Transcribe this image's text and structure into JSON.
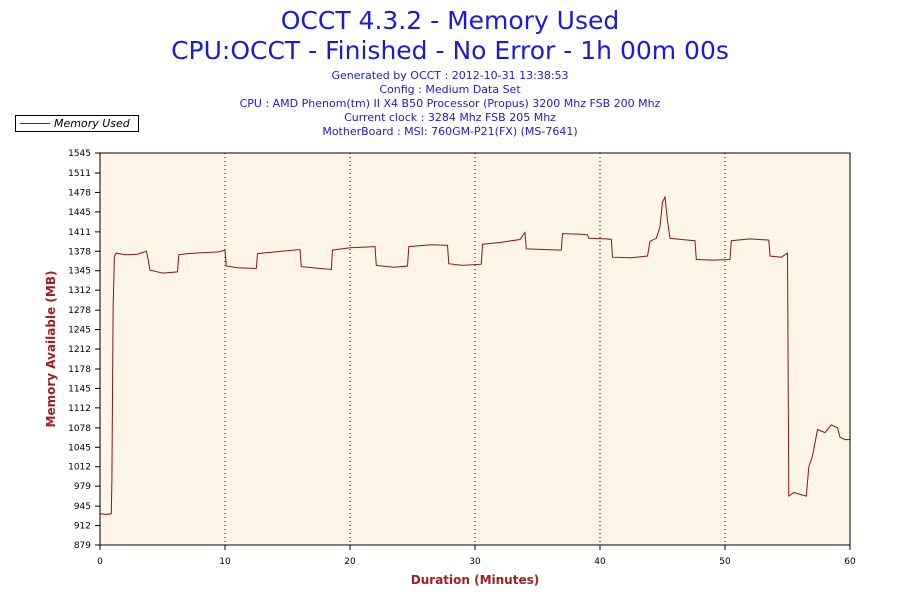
{
  "title": "OCCT 4.3.2 - Memory Used",
  "subtitle": "CPU:OCCT - Finished - No Error - 1h 00m 00s",
  "info_lines": [
    "Generated by OCCT : 2012-10-31 13:38:53",
    "Config : Medium Data Set",
    "CPU : AMD Phenom(tm) II X4 B50 Processor (Propus) 3200 Mhz FSB 200 Mhz",
    "Current clock : 3284 Mhz FSB 205 Mhz",
    "MotherBoard : MSI: 760GM-P21(FX) (MS-7641)"
  ],
  "legend": {
    "label": "Memory Used",
    "placement": "top-left"
  },
  "colors": {
    "line": "#8b1414",
    "plot_bg": "#fdf5e6",
    "title": "#1a1adb",
    "axis_title": "#a01e1e"
  },
  "chart_data": {
    "type": "line",
    "title": "OCCT 4.3.2 - Memory Used",
    "xlabel": "Duration (Minutes)",
    "ylabel": "Memory Available (MB)",
    "xlim": [
      0,
      60
    ],
    "ylim": [
      879,
      1545
    ],
    "x_ticks": [
      0,
      10,
      20,
      30,
      40,
      50,
      60
    ],
    "y_ticks": [
      879,
      912,
      945,
      979,
      1012,
      1045,
      1078,
      1112,
      1145,
      1178,
      1212,
      1245,
      1278,
      1312,
      1345,
      1378,
      1411,
      1445,
      1478,
      1511,
      1545
    ],
    "grid": "vertical dotted at major x ticks",
    "series": [
      {
        "name": "Memory Used",
        "points": [
          [
            0,
            932
          ],
          [
            0.5,
            931
          ],
          [
            0.9,
            932
          ],
          [
            0.95,
            990
          ],
          [
            1.05,
            1280
          ],
          [
            1.15,
            1370
          ],
          [
            1.3,
            1375
          ],
          [
            2.0,
            1372
          ],
          [
            3.0,
            1373
          ],
          [
            3.7,
            1378
          ],
          [
            3.8,
            1370
          ],
          [
            4.0,
            1346
          ],
          [
            5.0,
            1341
          ],
          [
            6.2,
            1343
          ],
          [
            6.3,
            1372
          ],
          [
            7.0,
            1374
          ],
          [
            8.5,
            1376
          ],
          [
            9.5,
            1377
          ],
          [
            10.0,
            1380
          ],
          [
            10.1,
            1353
          ],
          [
            11.0,
            1350
          ],
          [
            12.5,
            1349
          ],
          [
            12.6,
            1374
          ],
          [
            14.0,
            1377
          ],
          [
            16.0,
            1381
          ],
          [
            16.1,
            1352
          ],
          [
            17.0,
            1350
          ],
          [
            18.5,
            1347
          ],
          [
            18.6,
            1380
          ],
          [
            20.0,
            1384
          ],
          [
            22.0,
            1386
          ],
          [
            22.1,
            1354
          ],
          [
            23.5,
            1351
          ],
          [
            24.6,
            1353
          ],
          [
            24.7,
            1386
          ],
          [
            26.5,
            1389
          ],
          [
            27.8,
            1388
          ],
          [
            27.9,
            1357
          ],
          [
            29.0,
            1354
          ],
          [
            30.5,
            1356
          ],
          [
            30.6,
            1390
          ],
          [
            32.0,
            1393
          ],
          [
            33.6,
            1398
          ],
          [
            34.0,
            1410
          ],
          [
            34.1,
            1382
          ],
          [
            35.5,
            1381
          ],
          [
            36.9,
            1380
          ],
          [
            37.0,
            1408
          ],
          [
            38.5,
            1407
          ],
          [
            39.0,
            1406
          ],
          [
            39.1,
            1400
          ],
          [
            40.5,
            1399
          ],
          [
            40.9,
            1398
          ],
          [
            41.0,
            1368
          ],
          [
            42.5,
            1367
          ],
          [
            43.8,
            1370
          ],
          [
            44.0,
            1395
          ],
          [
            44.5,
            1400
          ],
          [
            44.8,
            1420
          ],
          [
            45.0,
            1462
          ],
          [
            45.2,
            1470
          ],
          [
            45.4,
            1430
          ],
          [
            45.6,
            1400
          ],
          [
            46.5,
            1398
          ],
          [
            47.6,
            1396
          ],
          [
            47.7,
            1364
          ],
          [
            49.0,
            1363
          ],
          [
            50.4,
            1364
          ],
          [
            50.5,
            1396
          ],
          [
            52.0,
            1399
          ],
          [
            53.5,
            1397
          ],
          [
            53.6,
            1370
          ],
          [
            54.5,
            1368
          ],
          [
            55.0,
            1375
          ],
          [
            55.1,
            962
          ],
          [
            55.5,
            968
          ],
          [
            56.5,
            962
          ],
          [
            56.7,
            1012
          ],
          [
            57.0,
            1030
          ],
          [
            57.4,
            1075
          ],
          [
            58.0,
            1070
          ],
          [
            58.5,
            1083
          ],
          [
            59.0,
            1078
          ],
          [
            59.2,
            1062
          ],
          [
            59.6,
            1058
          ],
          [
            60.0,
            1058
          ]
        ]
      }
    ]
  }
}
